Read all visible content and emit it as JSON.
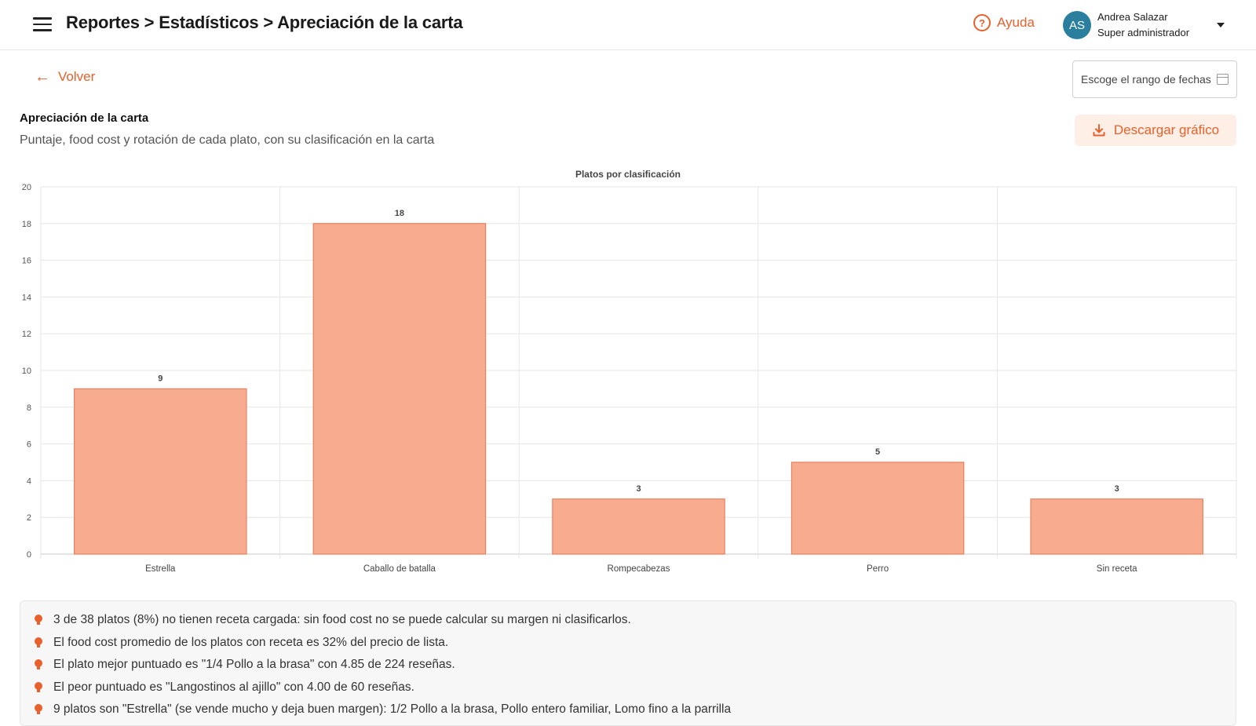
{
  "header": {
    "breadcrumb": "Reportes > Estadísticos > Apreciación de la carta",
    "help_label": "Ayuda",
    "user_initials": "AS",
    "user_name": "Andrea Salazar",
    "user_role": "Super administrador"
  },
  "toolbar": {
    "back_label": "Volver",
    "date_placeholder": "Escoge el rango de fechas",
    "download_label": "Descargar gráfico"
  },
  "section": {
    "title": "Apreciación de la carta",
    "subtitle": "Puntaje, food cost y rotación de cada plato, con su clasificación en la carta"
  },
  "colors": {
    "accent": "#e8612c",
    "bar_fill": "#f7ab8f",
    "bar_stroke": "#e8805e",
    "avatar": "#2a7f9e"
  },
  "chart_data": {
    "type": "bar",
    "title": "Platos por clasificación",
    "categories": [
      "Estrella",
      "Caballo de batalla",
      "Rompecabezas",
      "Perro",
      "Sin receta"
    ],
    "values": [
      9,
      18,
      3,
      5,
      3
    ],
    "xlabel": "",
    "ylabel": "",
    "ylim": [
      0,
      20
    ],
    "yticks": [
      0,
      2,
      4,
      6,
      8,
      10,
      12,
      14,
      16,
      18,
      20
    ],
    "grid": true,
    "data_labels": true
  },
  "insights": [
    "3 de 38 platos (8%) no tienen receta cargada: sin food cost no se puede calcular su margen ni clasificarlos.",
    "El food cost promedio de los platos con receta es 32% del precio de lista.",
    "El plato mejor puntuado es \"1/4 Pollo a la brasa\" con 4.85 de 224 reseñas.",
    "El peor puntuado es \"Langostinos al ajillo\" con 4.00 de 60 reseñas.",
    "9 platos son \"Estrella\" (se vende mucho y deja buen margen): 1/2 Pollo a la brasa, Pollo entero familiar, Lomo fino a la parrilla"
  ]
}
